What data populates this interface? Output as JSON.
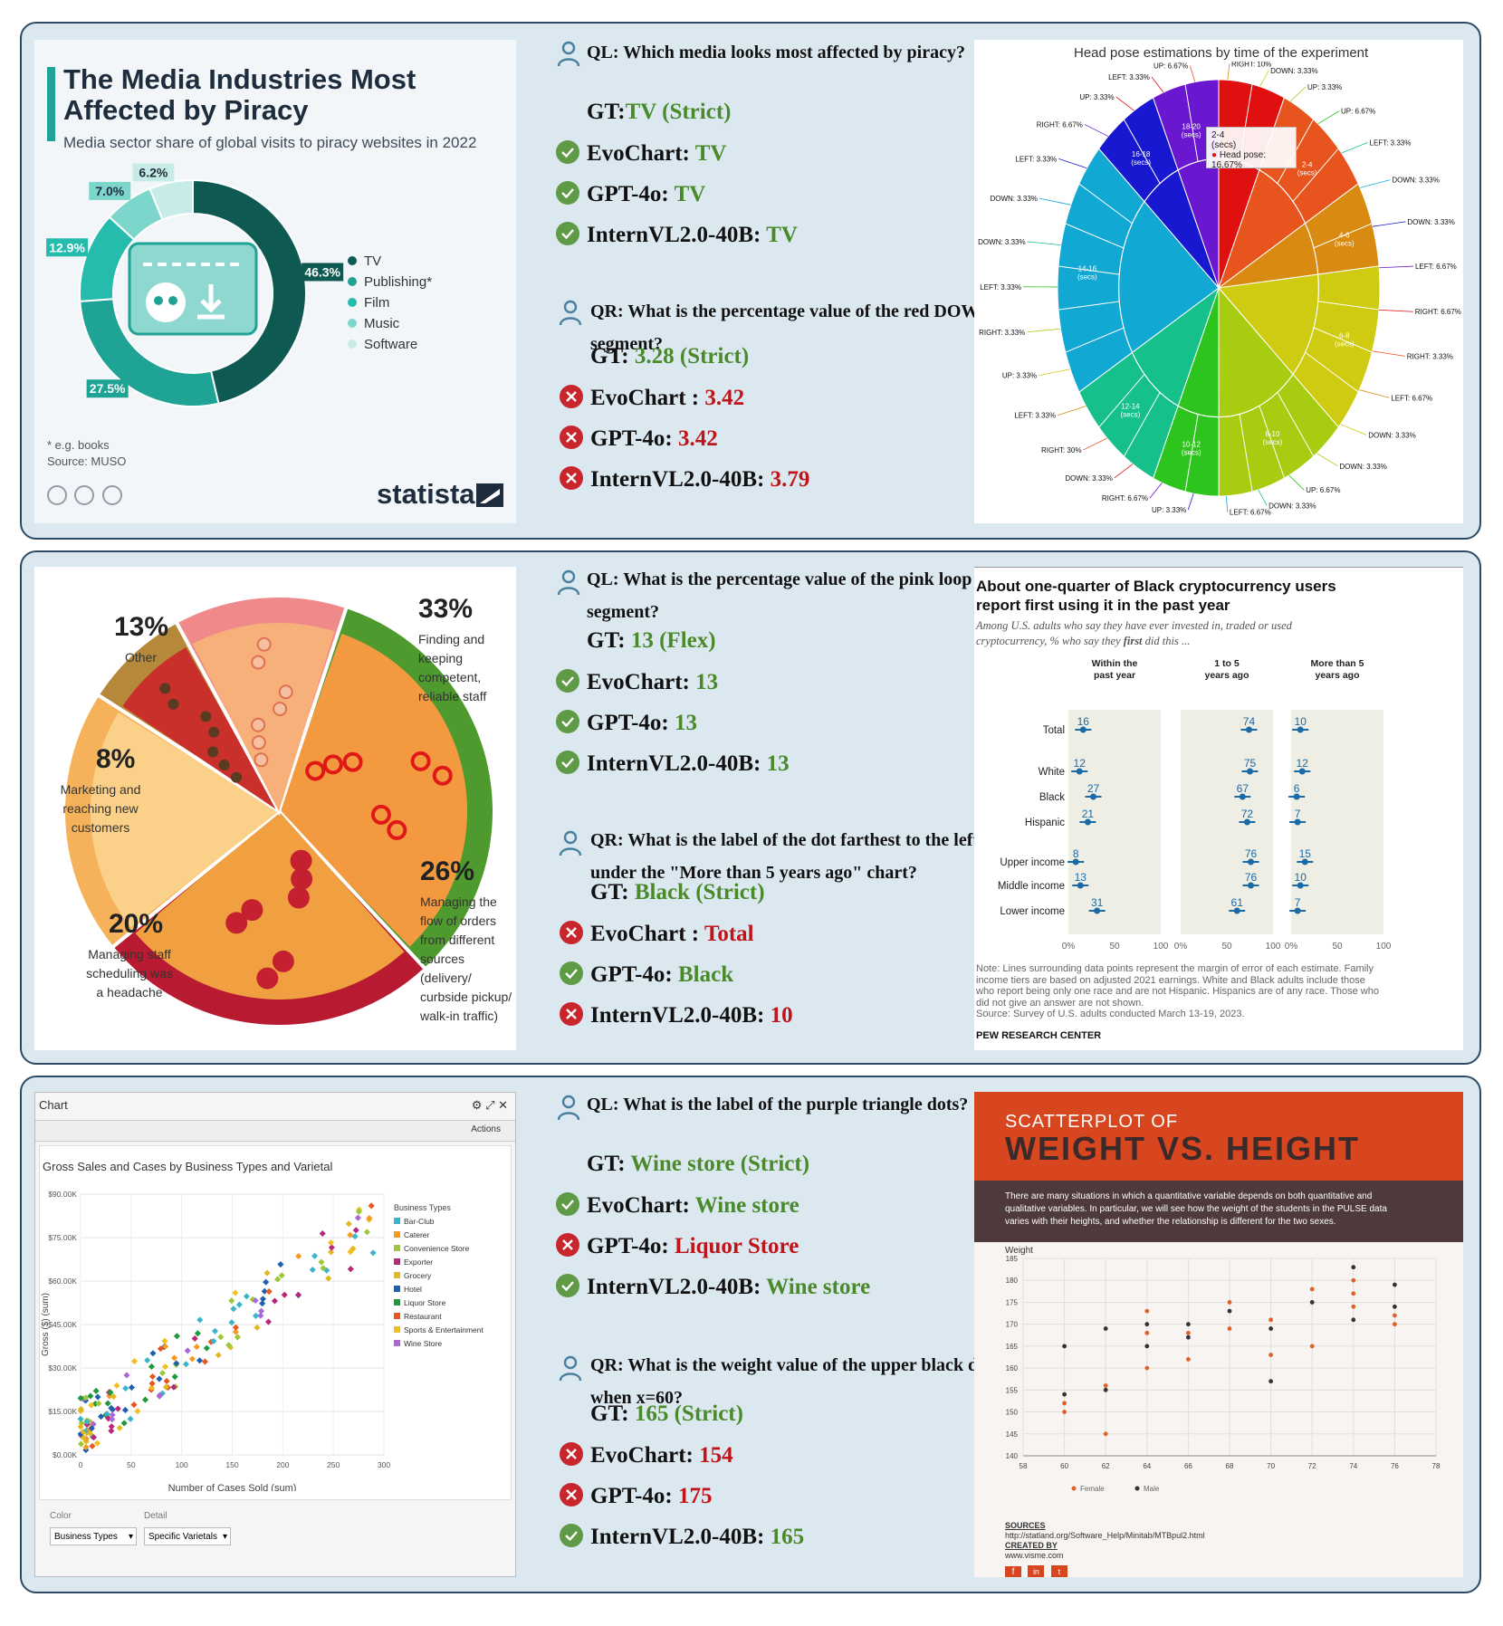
{
  "rows": [
    {
      "left_chart": {
        "title_line1": "The Media Industries Most",
        "title_line2": "Affected by Piracy",
        "subtitle": "Media sector share of global visits to piracy websites in 2022",
        "footnote": "* e.g. books",
        "source": "Source: MUSO",
        "brand": "statista",
        "chart_data": {
          "type": "pie",
          "categories": [
            "TV",
            "Publishing*",
            "Film",
            "Music",
            "Software"
          ],
          "values": [
            46.3,
            27.5,
            12.9,
            7.0,
            6.2
          ],
          "value_labels": [
            "46.3%",
            "27.5%",
            "12.9%",
            "7.0%",
            "6.2%"
          ],
          "colors": [
            "#0e5a52",
            "#1fa394",
            "#25bcae",
            "#7dd6cc",
            "#c7ece8"
          ]
        }
      },
      "qa": {
        "ql": "QL: Which media looks most affected by piracy?",
        "ql_gt_label": "GT:",
        "ql_gt_value": "TV (Strict)",
        "ql_answers": [
          {
            "model": "EvoChart:",
            "value": "TV",
            "correct": true
          },
          {
            "model": "GPT-4o:",
            "value": "TV",
            "correct": true
          },
          {
            "model": "InternVL2.0-40B:",
            "value": "TV",
            "correct": true
          }
        ],
        "qr_line1": "QR: What is the percentage value of the red DOWN",
        "qr_line2": "segment?",
        "qr_gt_label": "GT:",
        "qr_gt_value": "3.28 (Strict)",
        "qr_answers": [
          {
            "model": "EvoChart :",
            "value": "3.42",
            "correct": false
          },
          {
            "model": "GPT-4o:",
            "value": "3.42",
            "correct": false
          },
          {
            "model": "InternVL2.0-40B:",
            "value": "3.79",
            "correct": false
          }
        ]
      },
      "right_chart": {
        "title": "Head pose estimations by time of the experiment",
        "tooltip_title": "2-4",
        "tooltip_unit": "(secs)",
        "tooltip_value": "Head pose: 16.67%",
        "chart_data": {
          "type": "pie",
          "categories": [
            "2-4 (secs)",
            "2-4 (secs)",
            "4-6 (secs)",
            "6-8 (secs)",
            "8-10 (secs)",
            "10-12 (secs)",
            "12-14 (secs)",
            "14-16 (secs)",
            "16-18 (secs)",
            "18-20 (secs)"
          ],
          "values": [
            6.67,
            9.99,
            6.67,
            13.33,
            13.33,
            6.67,
            10.0,
            20.0,
            6.67,
            6.67
          ],
          "outer_labels": [
            "LEFT: 3.33%",
            "UP: 6.67%",
            "RIGHT: 10%",
            "DOWN: 3.33%",
            "UP: 3.33%",
            "UP: 6.67%",
            "LEFT: 3.33%",
            "DOWN: 3.33%",
            "DOWN: 3.33%",
            "LEFT: 6.67%",
            "RIGHT: 6.67%",
            "RIGHT: 3.33%",
            "LEFT: 6.67%",
            "DOWN: 3.33%",
            "DOWN: 3.33%",
            "UP: 6.67%",
            "DOWN: 3.33%",
            "LEFT: 6.67%",
            "UP: 3.33%",
            "RIGHT: 6.67%",
            "DOWN: 3.33%",
            "RIGHT: 30%",
            "LEFT: 3.33%",
            "UP: 3.33%",
            "RIGHT: 3.33%",
            "LEFT: 3.33%",
            "DOWN: 3.33%",
            "DOWN: 3.33%",
            "LEFT: 3.33%",
            "RIGHT: 6.67%",
            "UP: 3.33%"
          ],
          "inner_labels": [
            "18-20",
            "16-18",
            "14-16",
            "12-14",
            "10-12",
            "8-10",
            "6-8",
            "4-6",
            "2-4"
          ],
          "inner_unit": "(secs)"
        }
      }
    },
    {
      "left_chart": {
        "chart_data": {
          "type": "pie",
          "categories": [
            "Finding and keeping competent, reliable staff",
            "Managing the flow of orders from different sources (delivery/ curbside pickup/ walk-in traffic)",
            "Managing staff scheduling was a headache",
            "Marketing and reaching new customers",
            "Other"
          ],
          "values": [
            33,
            26,
            20,
            8,
            13
          ],
          "value_labels": [
            "33%",
            "26%",
            "20%",
            "8%",
            "13%"
          ]
        },
        "labels": {
          "p33": "33%",
          "d33": [
            "Finding and",
            "keeping",
            "competent,",
            "reliable staff"
          ],
          "p26": "26%",
          "d26": [
            "Managing the",
            "flow of orders",
            "from different",
            "sources (delivery/",
            "curbside pickup/",
            "walk-in traffic)"
          ],
          "p20": "20%",
          "d20": [
            "Managing staff",
            "scheduling was",
            "a headache"
          ],
          "p8": "8%",
          "d8": [
            "Marketing and",
            "reaching new",
            "customers"
          ],
          "p13": "13%",
          "d13": [
            "Other"
          ]
        }
      },
      "qa": {
        "ql_line1": "QL: What is the percentage value of the pink loop",
        "ql_line2": "segment?",
        "ql_gt_label": "GT:",
        "ql_gt_value": "13 (Flex)",
        "ql_answers": [
          {
            "model": "EvoChart:",
            "value": "13",
            "correct": true
          },
          {
            "model": "GPT-4o:",
            "value": "13",
            "correct": true
          },
          {
            "model": "InternVL2.0-40B:",
            "value": "13",
            "correct": true
          }
        ],
        "qr_line1": "QR: What is the label of the dot farthest to the left",
        "qr_line2": "under the \"More than 5 years ago\" chart?",
        "qr_gt_label": "GT:",
        "qr_gt_value": "Black (Strict)",
        "qr_answers": [
          {
            "model": "EvoChart :",
            "value": "Total",
            "correct": false
          },
          {
            "model": "GPT-4o:",
            "value": "Black",
            "correct": true
          },
          {
            "model": "InternVL2.0-40B:",
            "value": "10",
            "correct": false
          }
        ]
      },
      "right_chart": {
        "title_line1": "About one-quarter of Black cryptocurrency users",
        "title_line2": "report first using it in the past year",
        "subtitle_line1": "Among U.S. adults who say they have ever invested in, traded or used",
        "subtitle_line2a": "cryptocurrency, % who say they ",
        "subtitle_bold": "first",
        "subtitle_line2b": " did this ...",
        "notes": [
          "Note: Lines surrounding data points represent the margin of error of each estimate. Family",
          "income tiers are based on adjusted 2021 earnings. White and Black adults include those",
          "who report being only one race and are not Hispanic. Hispanics are of any race. Those who",
          "did not give an answer are not shown.",
          "Source: Survey of U.S. adults conducted March 13-19, 2023."
        ],
        "brand": "PEW RESEARCH CENTER",
        "chart_data": {
          "type": "scatter",
          "categories": [
            "Total",
            "White",
            "Black",
            "Hispanic",
            "Upper income",
            "Middle income",
            "Lower income"
          ],
          "series": [
            {
              "name": "Within the past year",
              "header": [
                "Within the",
                "past year"
              ],
              "values": [
                16,
                12,
                27,
                21,
                8,
                13,
                31
              ]
            },
            {
              "name": "1 to 5 years ago",
              "header": [
                "1 to 5",
                "years ago"
              ],
              "values": [
                74,
                75,
                67,
                72,
                76,
                76,
                61
              ]
            },
            {
              "name": "More than 5 years ago",
              "header": [
                "More than 5",
                "years ago"
              ],
              "values": [
                10,
                12,
                6,
                7,
                15,
                10,
                7
              ]
            }
          ],
          "ticks": [
            "0%",
            "50",
            "100"
          ],
          "xlim": [
            0,
            100
          ]
        }
      }
    },
    {
      "left_chart": {
        "window_title": "Chart",
        "actions": "Actions",
        "chart_title": "Gross Sales and Cases by Business Types and Varietal",
        "color_label": "Color",
        "detail_label": "Detail",
        "color_value": "Business Types",
        "detail_value": "Specific Varietals",
        "chart_data": {
          "type": "scatter",
          "title": "Gross Sales and Cases by Business Types and Varietal",
          "xlabel": "Number of Cases Sold (sum)",
          "ylabel": "Gross ($) (sum)",
          "xlim": [
            0,
            300
          ],
          "ylim": [
            0,
            90000
          ],
          "xticks": [
            "0",
            "50",
            "100",
            "150",
            "200",
            "250",
            "300"
          ],
          "yticks": [
            "$0.00K",
            "$15.00K",
            "$30.00K",
            "$45.00K",
            "$60.00K",
            "$75.00K",
            "$90.00K"
          ],
          "legend_title": "Business Types",
          "legend": [
            "Bar-Club",
            "Caterer",
            "Convenience Store",
            "Exporter",
            "Grocery",
            "Hotel",
            "Liquor Store",
            "Restaurant",
            "Sports & Entertainment",
            "Wine Store"
          ],
          "colors": [
            "#3ab4c8",
            "#f59a1c",
            "#9bc83a",
            "#b8287a",
            "#e2b820",
            "#1f5fb0",
            "#1f9a3a",
            "#e8551f",
            "#f0c020",
            "#a868d8"
          ]
        }
      },
      "qa": {
        "ql": "QL: What is the label of the purple triangle dots?",
        "ql_gt_label": "GT:",
        "ql_gt_value": "Wine store (Strict)",
        "ql_answers": [
          {
            "model": "EvoChart:",
            "value": "Wine store",
            "correct": true
          },
          {
            "model": "GPT-4o:",
            "value": "Liquor Store",
            "correct": false
          },
          {
            "model": "InternVL2.0-40B:",
            "value": "Wine store",
            "correct": true
          }
        ],
        "qr_line1": "QR: What is the weight value of the upper black do",
        "qr_line2": "when x=60?",
        "qr_gt_label": "GT:",
        "qr_gt_value": "165 (Strict)",
        "qr_answers": [
          {
            "model": "EvoChart:",
            "value": "154",
            "correct": false
          },
          {
            "model": "GPT-4o:",
            "value": "175",
            "correct": false
          },
          {
            "model": "InternVL2.0-40B:",
            "value": "165",
            "correct": true
          }
        ]
      },
      "right_chart": {
        "kicker": "SCATTERPLOT OF",
        "title": "WEIGHT VS. HEIGHT",
        "desc_line1": "There are many situations in which a quantitative variable depends on both quantitative and",
        "desc_line2": "qualitative variables. In particular, we will see how the weight of the students in the PULSE data",
        "desc_line3": "varies with their heights, and whether the relationship is different for the two sexes.",
        "sources_label": "SOURCES",
        "sources_url": "http://statland.org/Software_Help/Minitab/MTBpul2.html",
        "created_label": "CREATED BY",
        "created_url": "www.visme.com",
        "chart_data": {
          "type": "scatter",
          "ylabel": "Weight",
          "xlim": [
            58,
            78
          ],
          "ylim": [
            140,
            185
          ],
          "xticks": [
            "58",
            "60",
            "62",
            "64",
            "66",
            "68",
            "70",
            "72",
            "74",
            "76",
            "78"
          ],
          "yticks": [
            "140",
            "145",
            "150",
            "155",
            "160",
            "165",
            "170",
            "175",
            "180",
            "185"
          ],
          "series": [
            {
              "name": "Female",
              "color": "#e0602a",
              "points": [
                [
                  60,
                  150
                ],
                [
                  60,
                  152
                ],
                [
                  62,
                  145
                ],
                [
                  62,
                  156
                ],
                [
                  64,
                  160
                ],
                [
                  64,
                  168
                ],
                [
                  64,
                  173
                ],
                [
                  66,
                  162
                ],
                [
                  66,
                  168
                ],
                [
                  68,
                  169
                ],
                [
                  68,
                  175
                ],
                [
                  70,
                  163
                ],
                [
                  70,
                  171
                ],
                [
                  72,
                  165
                ],
                [
                  72,
                  178
                ],
                [
                  74,
                  174
                ],
                [
                  74,
                  177
                ],
                [
                  74,
                  180
                ],
                [
                  76,
                  170
                ],
                [
                  76,
                  172
                ]
              ]
            },
            {
              "name": "Male",
              "color": "#333333",
              "points": [
                [
                  60,
                  154
                ],
                [
                  60,
                  165
                ],
                [
                  62,
                  155
                ],
                [
                  62,
                  169
                ],
                [
                  64,
                  165
                ],
                [
                  64,
                  170
                ],
                [
                  66,
                  167
                ],
                [
                  66,
                  170
                ],
                [
                  68,
                  173
                ],
                [
                  70,
                  157
                ],
                [
                  70,
                  169
                ],
                [
                  72,
                  175
                ],
                [
                  74,
                  171
                ],
                [
                  74,
                  183
                ],
                [
                  76,
                  174
                ],
                [
                  76,
                  179
                ]
              ]
            }
          ]
        }
      }
    }
  ]
}
